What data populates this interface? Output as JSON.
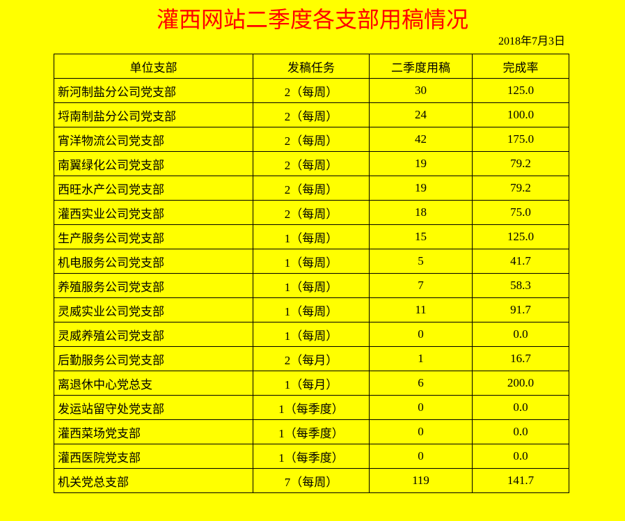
{
  "title": "灌西网站二季度各支部用稿情况",
  "date": "2018年7月3日",
  "headers": [
    "单位支部",
    "发稿任务",
    "二季度用稿",
    "完成率"
  ],
  "rows": [
    [
      "新河制盐分公司党支部",
      "2（每周）",
      "30",
      "125.0"
    ],
    [
      "埒南制盐分公司党支部",
      "2（每周）",
      "24",
      "100.0"
    ],
    [
      "宵洋物流公司党支部",
      "2（每周）",
      "42",
      "175.0"
    ],
    [
      "南翼绿化公司党支部",
      "2（每周）",
      "19",
      "79.2"
    ],
    [
      "西旺水产公司党支部",
      "2（每周）",
      "19",
      "79.2"
    ],
    [
      "灌西实业公司党支部",
      "2（每周）",
      "18",
      "75.0"
    ],
    [
      "生产服务公司党支部",
      "1（每周）",
      "15",
      "125.0"
    ],
    [
      "机电服务公司党支部",
      "1（每周）",
      "5",
      "41.7"
    ],
    [
      "养殖服务公司党支部",
      "1（每周）",
      "7",
      "58.3"
    ],
    [
      "灵威实业公司党支部",
      "1（每周）",
      "11",
      "91.7"
    ],
    [
      "灵威养殖公司党支部",
      "1（每周）",
      "0",
      "0.0"
    ],
    [
      "后勤服务公司党支部",
      "2（每月）",
      "1",
      "16.7"
    ],
    [
      "离退休中心党总支",
      "1（每月）",
      "6",
      "200.0"
    ],
    [
      "发运站留守处党支部",
      "1（每季度）",
      "0",
      "0.0"
    ],
    [
      "灌西菜场党支部",
      "1（每季度）",
      "0",
      "0.0"
    ],
    [
      "灌西医院党支部",
      "1（每季度）",
      "0",
      "0.0"
    ],
    [
      "机关党总支部",
      "7（每周）",
      "119",
      "141.7"
    ]
  ]
}
